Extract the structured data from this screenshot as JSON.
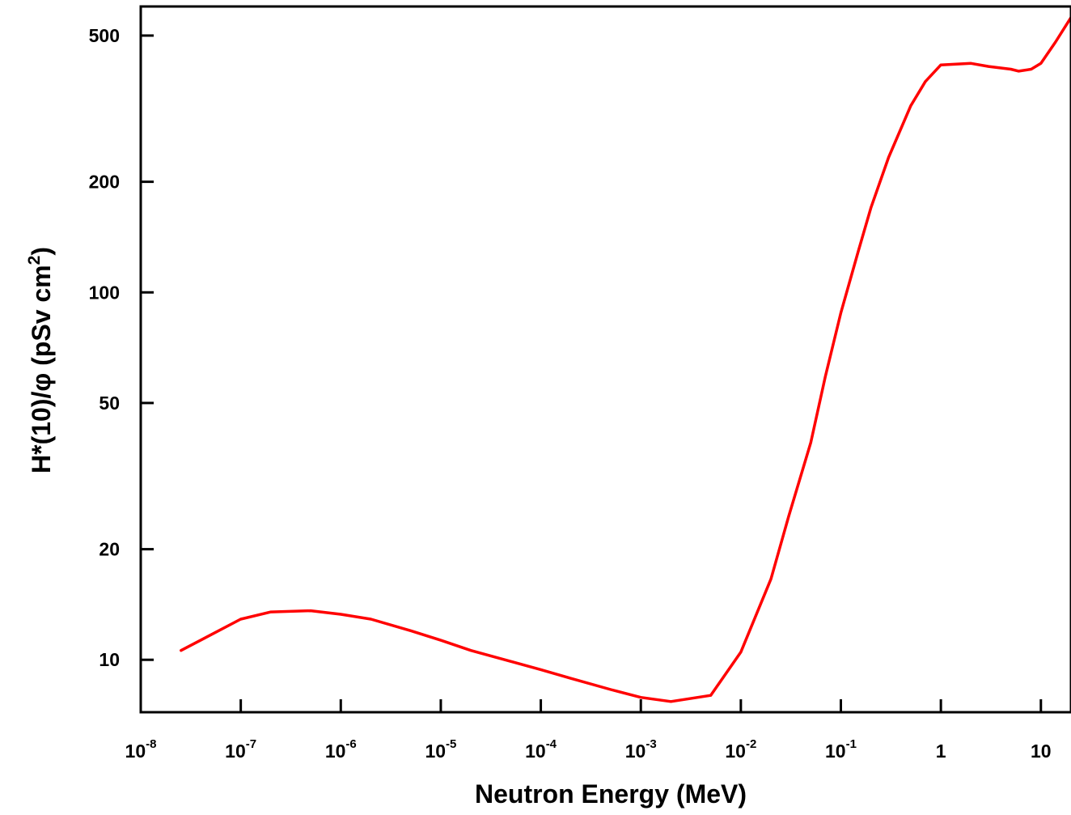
{
  "chart_data": {
    "type": "line",
    "title": "",
    "xlabel": "Neutron Energy (MeV)",
    "ylabel": "H*(10)/φ (pSv cm²)",
    "ylabel_parts": {
      "main": "H*(10)/φ (pSv cm",
      "superscript": "2",
      "close": ")"
    },
    "xscale": "log",
    "yscale": "log",
    "xlim": [
      1e-08,
      20
    ],
    "ylim": [
      7.2,
      600
    ],
    "grid": false,
    "line_color": "#ff0000",
    "x_ticks": [
      {
        "value": 1e-08,
        "base": "10",
        "exp": "-8"
      },
      {
        "value": 1e-07,
        "base": "10",
        "exp": "-7"
      },
      {
        "value": 1e-06,
        "base": "10",
        "exp": "-6"
      },
      {
        "value": 1e-05,
        "base": "10",
        "exp": "-5"
      },
      {
        "value": 0.0001,
        "base": "10",
        "exp": "-4"
      },
      {
        "value": 0.001,
        "base": "10",
        "exp": "-3"
      },
      {
        "value": 0.01,
        "base": "10",
        "exp": "-2"
      },
      {
        "value": 0.1,
        "base": "10",
        "exp": "-1"
      },
      {
        "value": 1,
        "base": "1",
        "exp": ""
      },
      {
        "value": 10,
        "base": "10",
        "exp": ""
      }
    ],
    "y_ticks": [
      {
        "value": 10,
        "label": "10"
      },
      {
        "value": 20,
        "label": "20"
      },
      {
        "value": 50,
        "label": "50"
      },
      {
        "value": 100,
        "label": "100"
      },
      {
        "value": 200,
        "label": "200"
      },
      {
        "value": 500,
        "label": "500"
      }
    ],
    "series": [
      {
        "x": [
          2.53e-08,
          1e-07,
          2e-07,
          5e-07,
          1e-06,
          2e-06,
          5e-06,
          1e-05,
          2e-05,
          5e-05,
          0.0001,
          0.0002,
          0.0005,
          0.001,
          0.002,
          0.005,
          0.01,
          0.02,
          0.03,
          0.05,
          0.07,
          0.1,
          0.15,
          0.2,
          0.3,
          0.5,
          0.7,
          1,
          2,
          3,
          5,
          6,
          8,
          10,
          14,
          20
        ],
        "y": [
          10.6,
          12.9,
          13.5,
          13.6,
          13.3,
          12.9,
          12.0,
          11.3,
          10.6,
          9.9,
          9.4,
          8.9,
          8.3,
          7.9,
          7.7,
          8.0,
          10.5,
          16.6,
          24.5,
          39.0,
          59.0,
          88.0,
          130.0,
          170.0,
          233.0,
          322.0,
          375.0,
          416.0,
          420.0,
          412.0,
          405.0,
          400.0,
          405.0,
          420.0,
          480.0,
          560.0
        ]
      }
    ]
  }
}
